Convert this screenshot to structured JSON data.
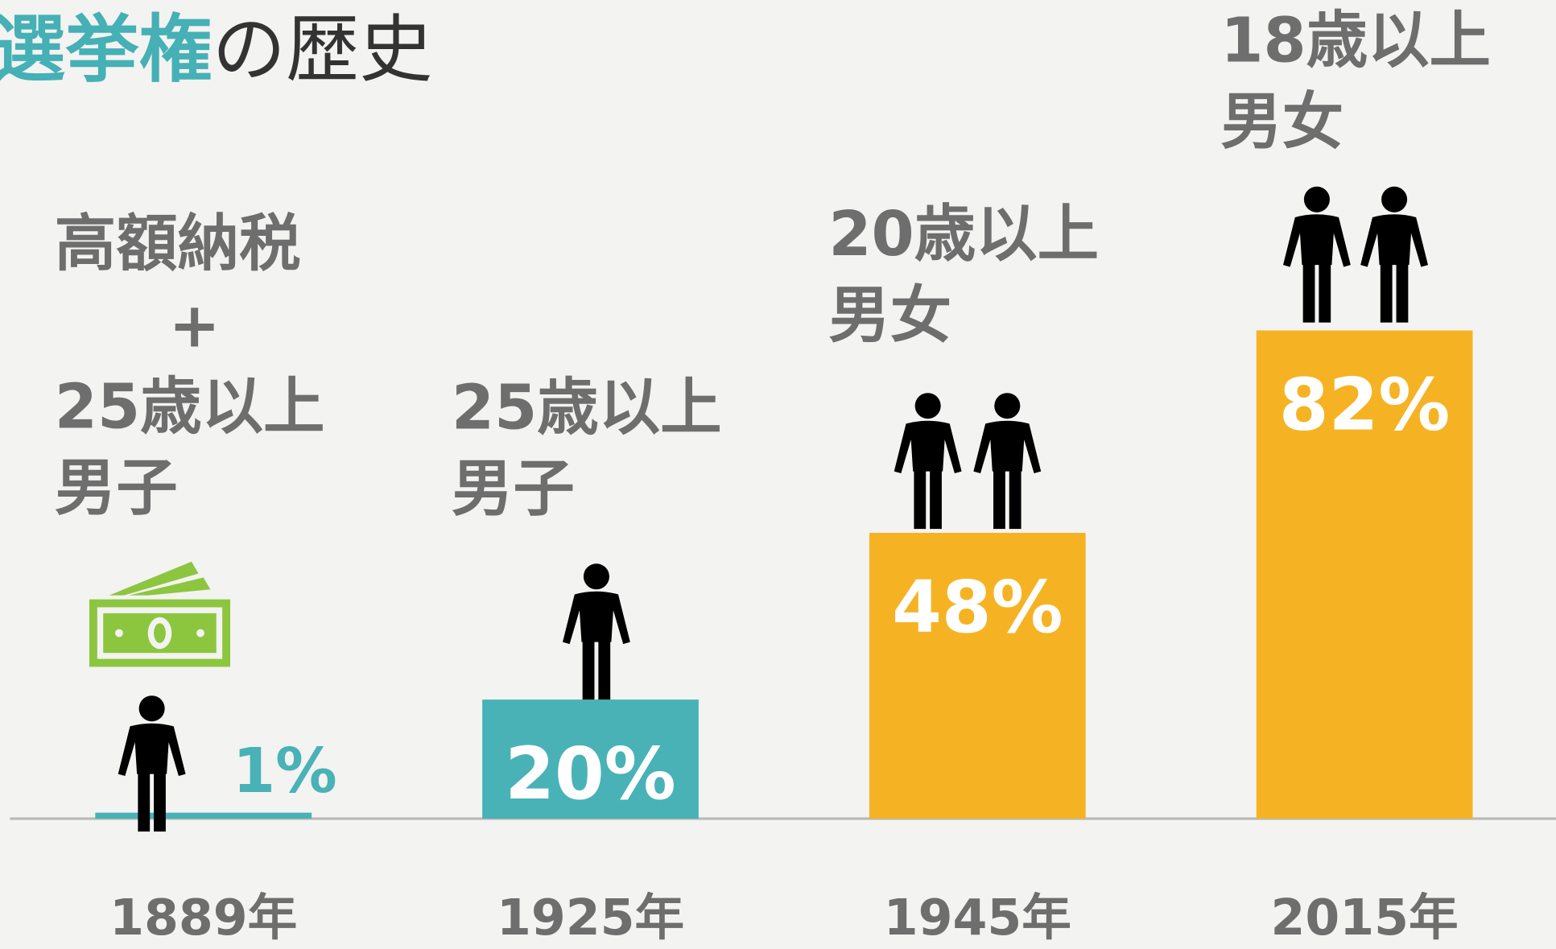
{
  "chart_data": {
    "type": "bar",
    "title_parts": [
      "選挙権",
      "の歴史"
    ],
    "categories": [
      "1889年",
      "1925年",
      "1945年",
      "2015年"
    ],
    "descriptions": [
      [
        "高額納税",
        "+",
        "25歳以上",
        "男子"
      ],
      [
        "25歳以上",
        "男子"
      ],
      [
        "20歳以上",
        "男女"
      ],
      [
        "18歳以上",
        "男女"
      ]
    ],
    "values": [
      1,
      20,
      48,
      82
    ],
    "value_labels": [
      "1%",
      "20%",
      "48%",
      "82%"
    ],
    "colors": [
      "#48b2b7",
      "#48b2b7",
      "#f5b324",
      "#f5b324"
    ],
    "ylim": [
      0,
      100
    ]
  }
}
